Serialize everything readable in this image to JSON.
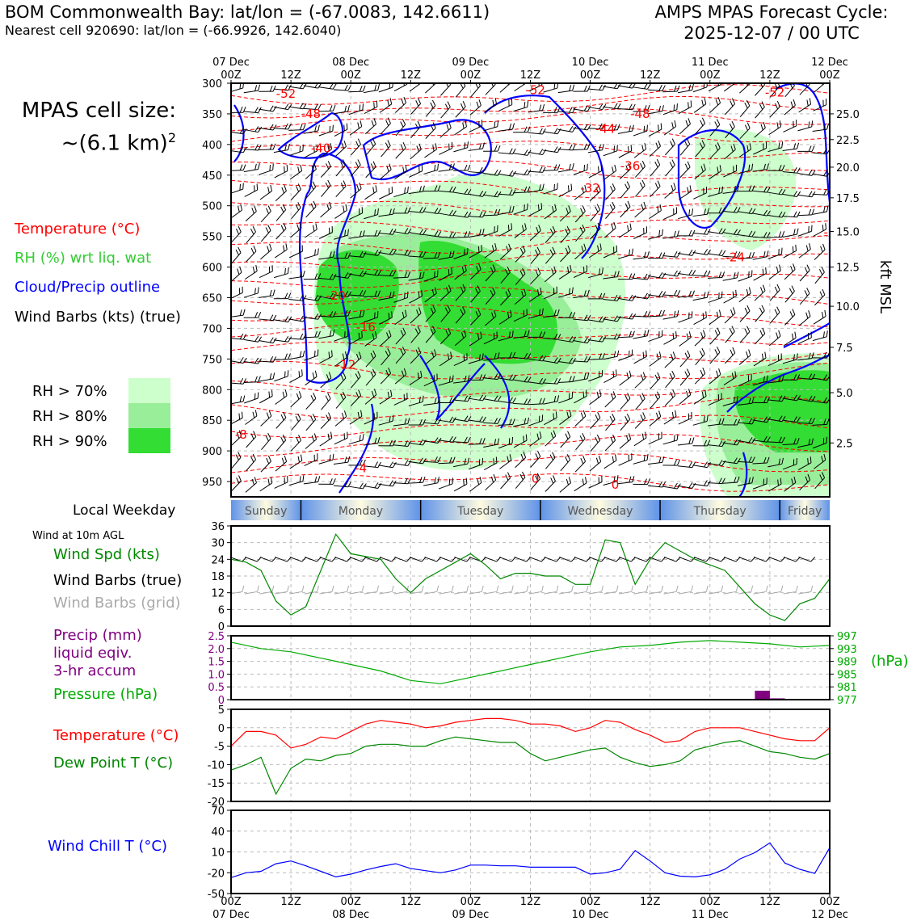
{
  "header": {
    "title": "BOM Commonwealth Bay: lat/lon = (-67.0083, 142.6611)",
    "subtitle": "Nearest cell 920690: lat/lon = (-66.9926, 142.6040)",
    "forecast_title": "AMPS MPAS Forecast Cycle:",
    "forecast_cycle": "2025-12-07 / 00 UTC"
  },
  "cellsize": {
    "line1": "MPAS cell size:",
    "line2": "~(6.1 km)",
    "sup": "2"
  },
  "legend": {
    "temperature": "Temperature (°C)",
    "rh": "RH (%) wrt liq. wat",
    "cloud": "Cloud/Precip outline",
    "wind": "Wind Barbs (kts) (true)",
    "rh70": "RH > 70%",
    "rh80": "RH > 80%",
    "rh90": "RH > 90%",
    "colors": {
      "temp": "#ff0000",
      "rh": "#33cc33",
      "cloud": "#0000ff",
      "wind": "#000000",
      "rh70": "#ccffcc",
      "rh80": "#99ee99",
      "rh90": "#33dd33"
    }
  },
  "local_weekday_label": "Local Weekday",
  "wind10_label": "Wind at 10m AGL",
  "panel_labels": {
    "wind_spd": "Wind Spd (kts)",
    "wind_barbs_true": "Wind Barbs (true)",
    "wind_barbs_grid": "Wind Barbs (grid)",
    "precip1": "Precip (mm)",
    "precip2": "liquid eqiv.",
    "precip3": "3-hr accum",
    "pressure": "Pressure (hPa)",
    "hpa": "(hPa)",
    "temperature": "Temperature (°C)",
    "dewpoint": "Dew Point T (°C)",
    "windchill": "Wind Chill T (°C)"
  },
  "chart_data": [
    {
      "type": "heatmap",
      "name": "cross-section",
      "ylabel": "pressure (hPa)",
      "right_ylabel": "kft MSL",
      "x_top_ticks": [
        "00Z",
        "12Z",
        "00Z",
        "12Z",
        "00Z",
        "12Z",
        "00Z",
        "12Z",
        "00Z",
        "12Z",
        "00Z"
      ],
      "x_top_dates": [
        {
          "label": "07 Dec",
          "index": 0
        },
        {
          "label": "08 Dec",
          "index": 2
        },
        {
          "label": "09 Dec",
          "index": 4
        },
        {
          "label": "10 Dec",
          "index": 6
        },
        {
          "label": "11 Dec",
          "index": 8
        },
        {
          "label": "12 Dec",
          "index": 10
        }
      ],
      "pressure_ticks": [
        "300",
        "350",
        "400",
        "450",
        "500",
        "550",
        "600",
        "650",
        "700",
        "750",
        "800",
        "850",
        "900",
        "950"
      ],
      "ylim": [
        300,
        975
      ],
      "kft_ticks": [
        {
          "label": "25.0",
          "p": 350
        },
        {
          "label": "22.5",
          "p": 392
        },
        {
          "label": "20.0",
          "p": 437
        },
        {
          "label": "17.5",
          "p": 487
        },
        {
          "label": "15.0",
          "p": 542
        },
        {
          "label": "12.5",
          "p": 600
        },
        {
          "label": "10.0",
          "p": 664
        },
        {
          "label": "7.5",
          "p": 731
        },
        {
          "label": "5.0",
          "p": 805
        },
        {
          "label": "2.5",
          "p": 887
        }
      ],
      "temperature_contour_labels": [
        {
          "text": "-52",
          "t": 11,
          "p": 324
        },
        {
          "text": "-48",
          "t": 16,
          "p": 357
        },
        {
          "text": "-40",
          "t": 18,
          "p": 413
        },
        {
          "text": "-52",
          "t": 61,
          "p": 318
        },
        {
          "text": "-48",
          "t": 82,
          "p": 357
        },
        {
          "text": "-44",
          "t": 75,
          "p": 381
        },
        {
          "text": "-36",
          "t": 80,
          "p": 442
        },
        {
          "text": "-32",
          "t": 72,
          "p": 478
        },
        {
          "text": "-52",
          "t": 109,
          "p": 322
        },
        {
          "text": "-24",
          "t": 101,
          "p": 591
        },
        {
          "text": "-2",
          "t": 120,
          "p": 550
        },
        {
          "text": "-20",
          "t": 21,
          "p": 653
        },
        {
          "text": "-16",
          "t": 27,
          "p": 705
        },
        {
          "text": "-12",
          "t": 23,
          "p": 766
        },
        {
          "text": "-8",
          "t": 2,
          "p": 880
        },
        {
          "text": "-4",
          "t": 26,
          "p": 935
        },
        {
          "text": "0",
          "t": 61,
          "p": 952
        },
        {
          "text": "0",
          "t": 77,
          "p": 962
        }
      ]
    },
    {
      "type": "line",
      "name": "wind-speed",
      "ylabel": "Wind Spd (kts)",
      "ylim": [
        0,
        36
      ],
      "y_ticks": [
        "0",
        "6",
        "12",
        "18",
        "24",
        "30",
        "36"
      ],
      "series": [
        {
          "name": "Wind Spd (kts)",
          "color": "#008800",
          "x": [
            0,
            3,
            6,
            9,
            12,
            15,
            18,
            21,
            24,
            27,
            30,
            33,
            36,
            39,
            42,
            45,
            48,
            51,
            54,
            57,
            60,
            63,
            66,
            69,
            72,
            75,
            78,
            81,
            84,
            87,
            90,
            93,
            96,
            99,
            102,
            105,
            108,
            111,
            114,
            117,
            120
          ],
          "values": [
            24,
            23,
            20,
            9,
            4,
            7,
            20,
            33,
            26,
            25,
            24,
            17,
            12,
            17,
            20,
            23,
            26,
            22,
            17,
            19,
            19,
            18,
            18,
            15,
            15,
            31,
            30,
            15,
            24,
            30,
            27,
            24,
            22,
            20,
            14,
            8,
            4,
            2,
            8,
            10,
            17
          ]
        }
      ]
    },
    {
      "type": "line",
      "name": "precip-pressure",
      "left_ylabel": "Precip (mm)",
      "left_ylim": [
        0,
        2.5
      ],
      "left_ticks": [
        "0",
        "0.5",
        "1.0",
        "1.5",
        "2.0",
        "2.5"
      ],
      "right_ylabel": "Pressure (hPa)",
      "right_ylim": [
        977,
        997
      ],
      "right_ticks": [
        "977",
        "981",
        "985",
        "989",
        "993",
        "997"
      ],
      "precip_bars": [
        {
          "x": 106.5,
          "value": 0.35,
          "color": "#800080"
        },
        {
          "x": 109.5,
          "value": 0.05,
          "color": "#800080"
        }
      ],
      "series": [
        {
          "name": "Pressure (hPa)",
          "color": "#00aa00",
          "x": [
            0,
            6,
            12,
            18,
            24,
            30,
            36,
            42,
            48,
            54,
            60,
            66,
            72,
            78,
            84,
            90,
            96,
            102,
            108,
            114,
            120
          ],
          "values": [
            995,
            993,
            992,
            990,
            988,
            986,
            983,
            982,
            984,
            986,
            988,
            990,
            992,
            993.5,
            994,
            995,
            995.5,
            995,
            994.5,
            993.5,
            994
          ]
        }
      ]
    },
    {
      "type": "line",
      "name": "temperature-dewpoint",
      "ylim": [
        -20,
        5
      ],
      "y_ticks": [
        "-20",
        "-15",
        "-10",
        "-5",
        "0",
        "5"
      ],
      "series": [
        {
          "name": "Temperature (°C)",
          "color": "#ff0000",
          "x": [
            0,
            3,
            6,
            9,
            12,
            15,
            18,
            21,
            24,
            27,
            30,
            33,
            36,
            39,
            42,
            45,
            48,
            51,
            54,
            57,
            60,
            63,
            66,
            69,
            72,
            75,
            78,
            81,
            84,
            87,
            90,
            93,
            96,
            99,
            102,
            105,
            108,
            111,
            114,
            117,
            120
          ],
          "values": [
            -5,
            -1,
            -1,
            -2,
            -5.5,
            -4.5,
            -2.5,
            -3,
            -1,
            1,
            2,
            1.5,
            1,
            0,
            0.5,
            1.5,
            2,
            2.5,
            2.5,
            2,
            1,
            1,
            0.5,
            -1,
            0,
            2,
            1.5,
            -0.5,
            -2,
            -4,
            -3.5,
            -1,
            0,
            0,
            0,
            -1,
            -2,
            -3,
            -3.5,
            -3.5,
            0
          ]
        },
        {
          "name": "Dew Point T (°C)",
          "color": "#008800",
          "x": [
            0,
            3,
            6,
            9,
            12,
            15,
            18,
            21,
            24,
            27,
            30,
            33,
            36,
            39,
            42,
            45,
            48,
            51,
            54,
            57,
            60,
            63,
            66,
            69,
            72,
            75,
            78,
            81,
            84,
            87,
            90,
            93,
            96,
            99,
            102,
            105,
            108,
            111,
            114,
            117,
            120
          ],
          "values": [
            -11.5,
            -10,
            -8,
            -18,
            -11,
            -8.5,
            -9,
            -7.5,
            -7,
            -5,
            -4.5,
            -4.5,
            -5,
            -5,
            -3.5,
            -2.5,
            -3,
            -3.5,
            -4,
            -4,
            -7,
            -9,
            -8,
            -7,
            -6,
            -5.5,
            -8,
            -9.5,
            -10.5,
            -10,
            -9,
            -6,
            -5,
            -4,
            -3.5,
            -5,
            -6.5,
            -7,
            -8,
            -8.5,
            -7
          ]
        }
      ]
    },
    {
      "type": "line",
      "name": "wind-chill",
      "ylim": [
        -50,
        70
      ],
      "y_ticks": [
        "-50",
        "-20",
        "10",
        "40",
        "70"
      ],
      "series": [
        {
          "name": "Wind Chill T (°C)",
          "color": "#0000ff",
          "x": [
            0,
            3,
            6,
            9,
            12,
            15,
            18,
            21,
            24,
            27,
            30,
            33,
            36,
            39,
            42,
            45,
            48,
            51,
            54,
            57,
            60,
            63,
            66,
            69,
            72,
            75,
            78,
            81,
            84,
            87,
            90,
            93,
            96,
            99,
            102,
            105,
            108,
            111,
            114,
            117,
            120
          ],
          "values": [
            -27,
            -20,
            -18,
            -7,
            -3,
            -10,
            -18,
            -26,
            -22,
            -16,
            -11,
            -7,
            -14,
            -17,
            -20,
            -16,
            -9,
            -9,
            -10,
            -10,
            -12,
            -12,
            -12,
            -12,
            -22,
            -20,
            -15,
            12,
            -3,
            -20,
            -25,
            -26,
            -23,
            -15,
            0,
            9,
            23,
            -6,
            -15,
            -21,
            16
          ]
        }
      ]
    }
  ],
  "x_axis": {
    "bottom_ticks": [
      "00Z",
      "12Z",
      "00Z",
      "12Z",
      "00Z",
      "12Z",
      "00Z",
      "12Z",
      "00Z",
      "12Z",
      "00Z"
    ],
    "bottom_dates": [
      {
        "label": "07 Dec",
        "index": 0
      },
      {
        "label": "08 Dec",
        "index": 2
      },
      {
        "label": "09 Dec",
        "index": 4
      },
      {
        "label": "10 Dec",
        "index": 6
      },
      {
        "label": "11 Dec",
        "index": 8
      },
      {
        "label": "12 Dec",
        "index": 10
      }
    ]
  },
  "weekdays": [
    {
      "name": "Sunday",
      "start": 0,
      "end": 14
    },
    {
      "name": "Monday",
      "start": 14,
      "end": 38
    },
    {
      "name": "Tuesday",
      "start": 38,
      "end": 62
    },
    {
      "name": "Wednesday",
      "start": 62,
      "end": 86
    },
    {
      "name": "Thursday",
      "start": 86,
      "end": 110
    },
    {
      "name": "Friday",
      "start": 110,
      "end": 122
    }
  ]
}
